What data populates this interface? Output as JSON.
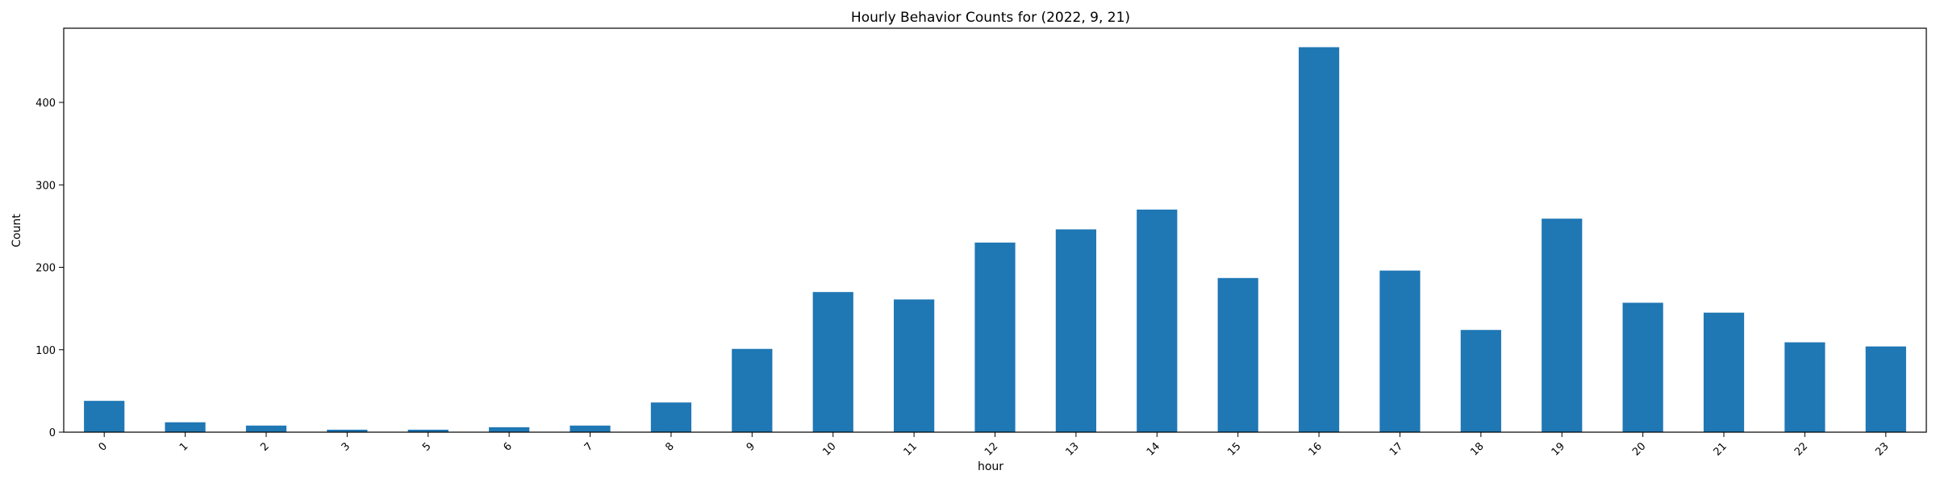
{
  "chart_data": {
    "type": "bar",
    "title": "Hourly Behavior Counts for (2022, 9, 21)",
    "xlabel": "hour",
    "ylabel": "Count",
    "categories": [
      "0",
      "1",
      "2",
      "3",
      "5",
      "6",
      "7",
      "8",
      "9",
      "10",
      "11",
      "12",
      "13",
      "14",
      "15",
      "16",
      "17",
      "18",
      "19",
      "20",
      "21",
      "22",
      "23"
    ],
    "values": [
      38,
      12,
      8,
      3,
      3,
      6,
      8,
      36,
      101,
      170,
      161,
      230,
      246,
      270,
      187,
      467,
      196,
      124,
      259,
      157,
      145,
      109,
      104
    ],
    "ylim": [
      0,
      490
    ],
    "yticks": [
      0,
      100,
      200,
      300,
      400
    ],
    "bar_color": "#1f77b4",
    "grid": false,
    "legend": "none"
  }
}
